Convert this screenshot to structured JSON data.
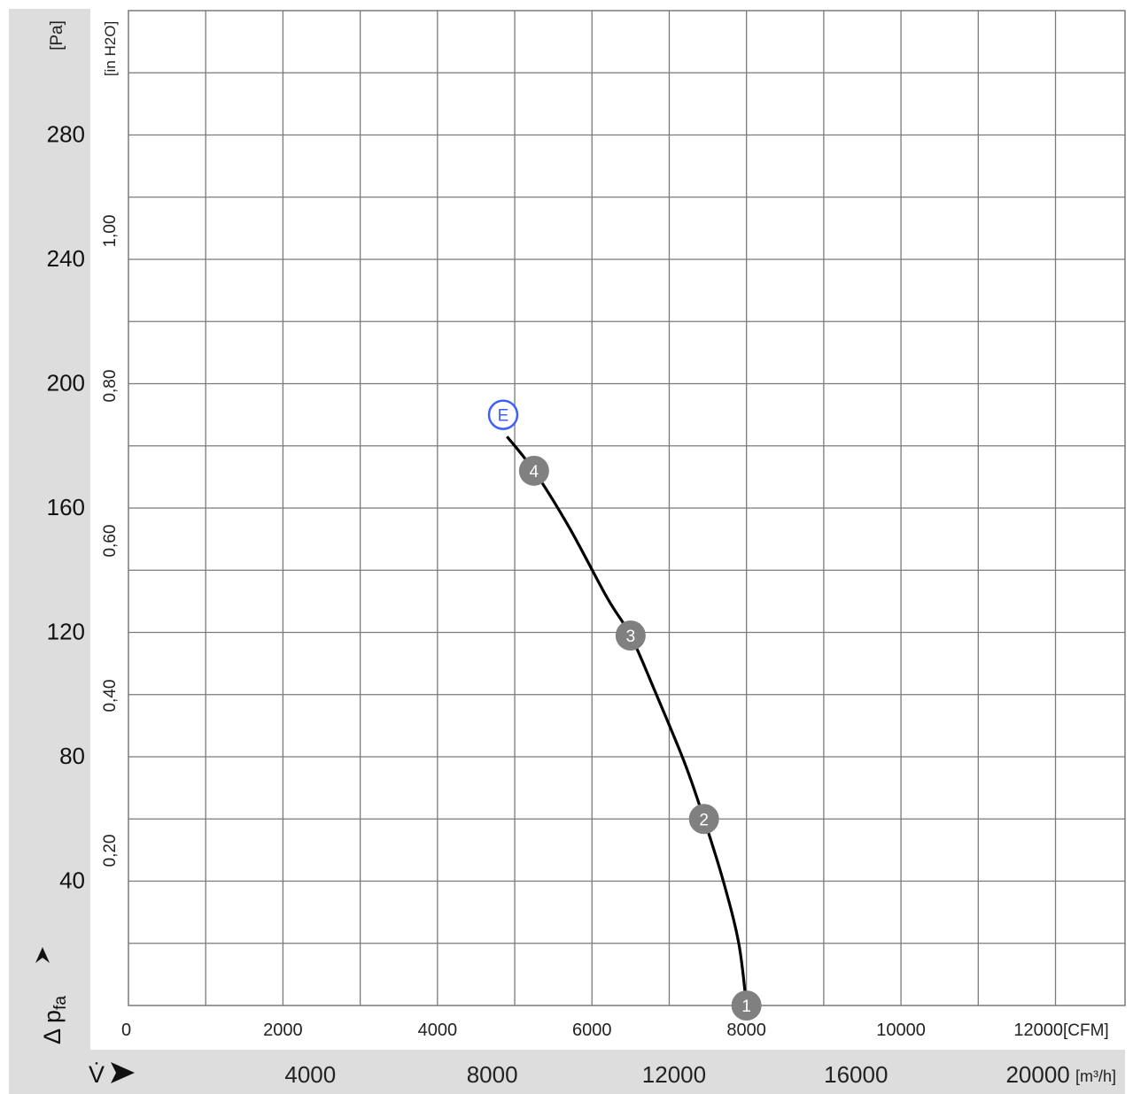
{
  "chart_data": {
    "type": "line",
    "title": "",
    "axes": {
      "y_left": {
        "unit_label": "[Pa]",
        "ylim": [
          0,
          320
        ],
        "ticks": [
          {
            "v": 40,
            "label": "40"
          },
          {
            "v": 80,
            "label": "80"
          },
          {
            "v": 120,
            "label": "120"
          },
          {
            "v": 160,
            "label": "160"
          },
          {
            "v": 200,
            "label": "200"
          },
          {
            "v": 240,
            "label": "240"
          },
          {
            "v": 280,
            "label": "280"
          }
        ],
        "symbol": "Δ p",
        "subscript": "fa"
      },
      "y_right": {
        "unit_label": "[in H2O]",
        "ticks": [
          {
            "v": 0.2,
            "label": "0,20"
          },
          {
            "v": 0.4,
            "label": "0,40"
          },
          {
            "v": 0.6,
            "label": "0,60"
          },
          {
            "v": 0.8,
            "label": "0,80"
          },
          {
            "v": 1.0,
            "label": "1,00"
          }
        ]
      },
      "x_cfm": {
        "unit_label": "[CFM]",
        "xlim": [
          0,
          12900
        ],
        "ticks": [
          {
            "v": 0,
            "label": "0"
          },
          {
            "v": 2000,
            "label": "2000"
          },
          {
            "v": 4000,
            "label": "4000"
          },
          {
            "v": 6000,
            "label": "6000"
          },
          {
            "v": 8000,
            "label": "8000"
          },
          {
            "v": 10000,
            "label": "10000"
          },
          {
            "v": 12000,
            "label": "12000"
          }
        ]
      },
      "x_m3h": {
        "unit_label": "[m³/h]",
        "symbol": "V̇",
        "ticks": [
          {
            "v": 4000,
            "label": "4000"
          },
          {
            "v": 8000,
            "label": "8000"
          },
          {
            "v": 12000,
            "label": "12000"
          },
          {
            "v": 16000,
            "label": "16000"
          },
          {
            "v": 20000,
            "label": "20000"
          }
        ]
      }
    },
    "grid": true,
    "series": [
      {
        "x_unit": "CFM",
        "y_unit": "Pa",
        "points": [
          [
            4900,
            183
          ],
          [
            5250,
            172
          ],
          [
            5700,
            154
          ],
          [
            6200,
            131
          ],
          [
            6500,
            119
          ],
          [
            6800,
            102
          ],
          [
            7200,
            78
          ],
          [
            7450,
            60
          ],
          [
            7700,
            40
          ],
          [
            7900,
            20
          ],
          [
            8000,
            0
          ]
        ]
      }
    ],
    "markers": [
      {
        "label": "1",
        "x": 8000,
        "y": 0
      },
      {
        "label": "2",
        "x": 7450,
        "y": 60
      },
      {
        "label": "3",
        "x": 6500,
        "y": 119
      },
      {
        "label": "4",
        "x": 5250,
        "y": 172
      },
      {
        "label": "E",
        "x": 4850,
        "y": 190
      }
    ],
    "colors": {
      "curve": "#000000",
      "marker": "#808080",
      "marker_e": "#3f5fff",
      "grid": "#7a7a7a",
      "band": "#dddddd"
    }
  }
}
